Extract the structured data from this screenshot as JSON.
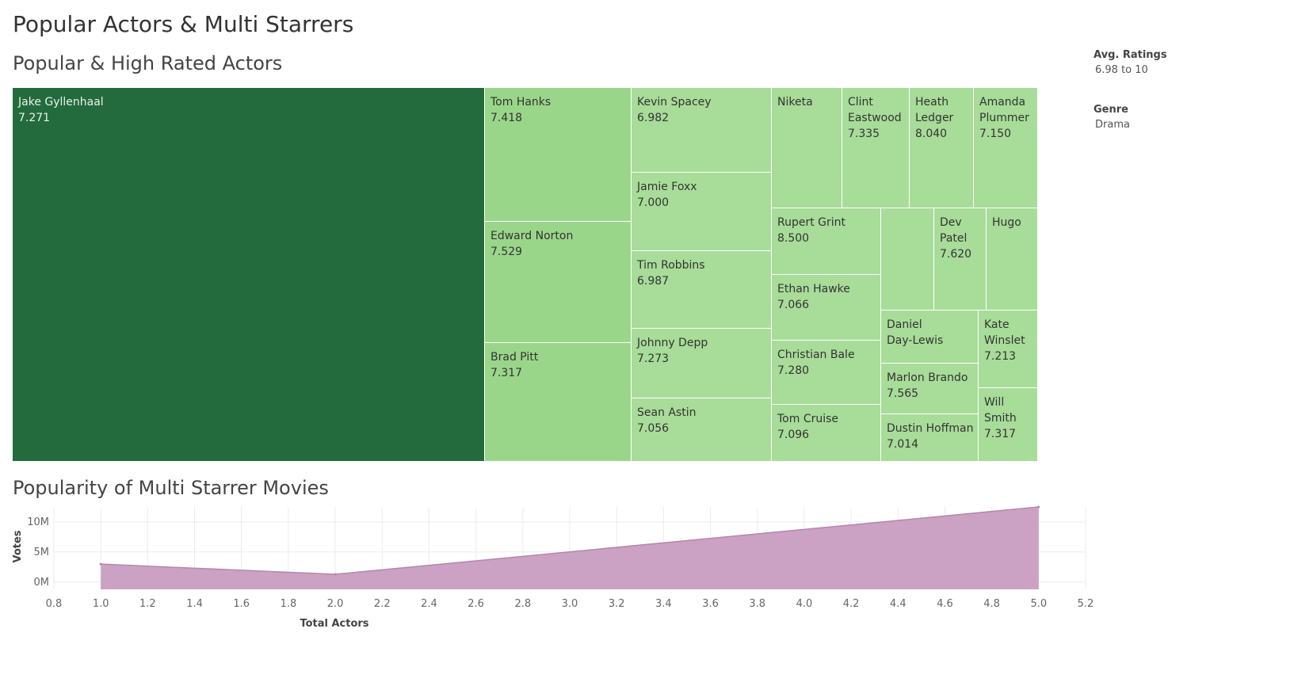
{
  "dashboard": {
    "title": "Popular Actors & Multi Starrers"
  },
  "treemap": {
    "title": "Popular & High Rated Actors",
    "tiles": [
      {
        "name": "Jake Gyllenhaal",
        "lines": [
          "Jake Gyllenhaal"
        ],
        "rating": "7.271"
      },
      {
        "name": "Tom Hanks",
        "lines": [
          "Tom Hanks"
        ],
        "rating": "7.418"
      },
      {
        "name": "Edward Norton",
        "lines": [
          "Edward Norton"
        ],
        "rating": "7.529"
      },
      {
        "name": "Brad Pitt",
        "lines": [
          "Brad Pitt"
        ],
        "rating": "7.317"
      },
      {
        "name": "Kevin Spacey",
        "lines": [
          "Kevin Spacey"
        ],
        "rating": "6.982"
      },
      {
        "name": "Jamie Foxx",
        "lines": [
          "Jamie Foxx"
        ],
        "rating": "7.000"
      },
      {
        "name": "Tim Robbins",
        "lines": [
          "Tim Robbins"
        ],
        "rating": "6.987"
      },
      {
        "name": "Johnny Depp",
        "lines": [
          "Johnny Depp"
        ],
        "rating": "7.273"
      },
      {
        "name": "Sean Astin",
        "lines": [
          "Sean Astin"
        ],
        "rating": "7.056"
      },
      {
        "name": "Niketa",
        "lines": [
          "Niketa"
        ],
        "rating": ""
      },
      {
        "name": "Clint Eastwood",
        "lines": [
          "Clint",
          "Eastwood"
        ],
        "rating": "7.335"
      },
      {
        "name": "Heath Ledger",
        "lines": [
          "Heath",
          "Ledger"
        ],
        "rating": "8.040"
      },
      {
        "name": "Amanda Plummer",
        "lines": [
          "Amanda",
          "Plummer"
        ],
        "rating": "7.150"
      },
      {
        "name": "Rupert Grint",
        "lines": [
          "Rupert Grint"
        ],
        "rating": "8.500"
      },
      {
        "name": "",
        "lines": [],
        "rating": ""
      },
      {
        "name": "Dev Patel",
        "lines": [
          "Dev",
          "Patel"
        ],
        "rating": "7.620"
      },
      {
        "name": "Hugo",
        "lines": [
          "Hugo"
        ],
        "rating": ""
      },
      {
        "name": "Ethan Hawke",
        "lines": [
          "Ethan Hawke"
        ],
        "rating": "7.066"
      },
      {
        "name": "Daniel Day-Lewis",
        "lines": [
          "Daniel",
          "Day-Lewis"
        ],
        "rating": ""
      },
      {
        "name": "Kate Winslet",
        "lines": [
          "Kate",
          "Winslet"
        ],
        "rating": "7.213"
      },
      {
        "name": "Christian Bale",
        "lines": [
          "Christian Bale"
        ],
        "rating": "7.280"
      },
      {
        "name": "Marlon Brando",
        "lines": [
          "Marlon Brando"
        ],
        "rating": "7.565"
      },
      {
        "name": "Will Smith",
        "lines": [
          "Will",
          "Smith"
        ],
        "rating": "7.317"
      },
      {
        "name": "Tom Cruise",
        "lines": [
          "Tom Cruise"
        ],
        "rating": "7.096"
      },
      {
        "name": "Dustin Hoffman",
        "lines": [
          "Dustin Hoffman"
        ],
        "rating": "7.014"
      }
    ]
  },
  "legend": {
    "ratings_title": "Avg. Ratings",
    "ratings_range": "6.98 to 10",
    "genre_title": "Genre",
    "genre_value": "Drama"
  },
  "chart_data": [
    {
      "type": "heatmap",
      "title": "Popular & High Rated Actors",
      "description_of_encoding": "",
      "categories": [
        "Jake Gyllenhaal",
        "Tom Hanks",
        "Edward Norton",
        "Brad Pitt",
        "Kevin Spacey",
        "Jamie Foxx",
        "Tim Robbins",
        "Johnny Depp",
        "Sean Astin",
        "Niketa",
        "Clint Eastwood",
        "Heath Ledger",
        "Amanda Plummer",
        "Rupert Grint",
        "Dev Patel",
        "Hugo",
        "Ethan Hawke",
        "Daniel Day-Lewis",
        "Kate Winslet",
        "Christian Bale",
        "Marlon Brando",
        "Will Smith",
        "Tom Cruise",
        "Dustin Hoffman"
      ],
      "values": [
        7.271,
        7.418,
        7.529,
        7.317,
        6.982,
        7.0,
        6.987,
        7.273,
        7.056,
        null,
        7.335,
        8.04,
        7.15,
        8.5,
        7.62,
        null,
        7.066,
        null,
        7.213,
        7.28,
        7.565,
        7.317,
        7.096,
        7.014
      ],
      "highlighted": "Jake Gyllenhaal",
      "colors": {
        "highlight": "#236b3c",
        "tile": "#a8dc99",
        "tile_alt": "#9ad68a"
      }
    },
    {
      "type": "area",
      "title": "Popularity of Multi Starrer Movies",
      "xlabel": "Total Actors",
      "ylabel": "Votes",
      "x": [
        1,
        2,
        5
      ],
      "y": [
        3000000,
        1300000,
        12500000
      ],
      "xlim": [
        0.8,
        5.2
      ],
      "ylim": [
        -1200000,
        12500000
      ],
      "xticks": [
        "0.8",
        "1.0",
        "1.2",
        "1.4",
        "1.6",
        "1.8",
        "2.0",
        "2.2",
        "2.4",
        "2.6",
        "2.8",
        "3.0",
        "3.2",
        "3.4",
        "3.6",
        "3.8",
        "4.0",
        "4.2",
        "4.4",
        "4.6",
        "4.8",
        "5.0",
        "5.2"
      ],
      "yticks": [
        {
          "v": 0,
          "label": "0M"
        },
        {
          "v": 5000000,
          "label": "5M"
        },
        {
          "v": 10000000,
          "label": "10M"
        }
      ],
      "grid": true,
      "color": "#cba2c4",
      "edge": "#b487ad"
    }
  ]
}
